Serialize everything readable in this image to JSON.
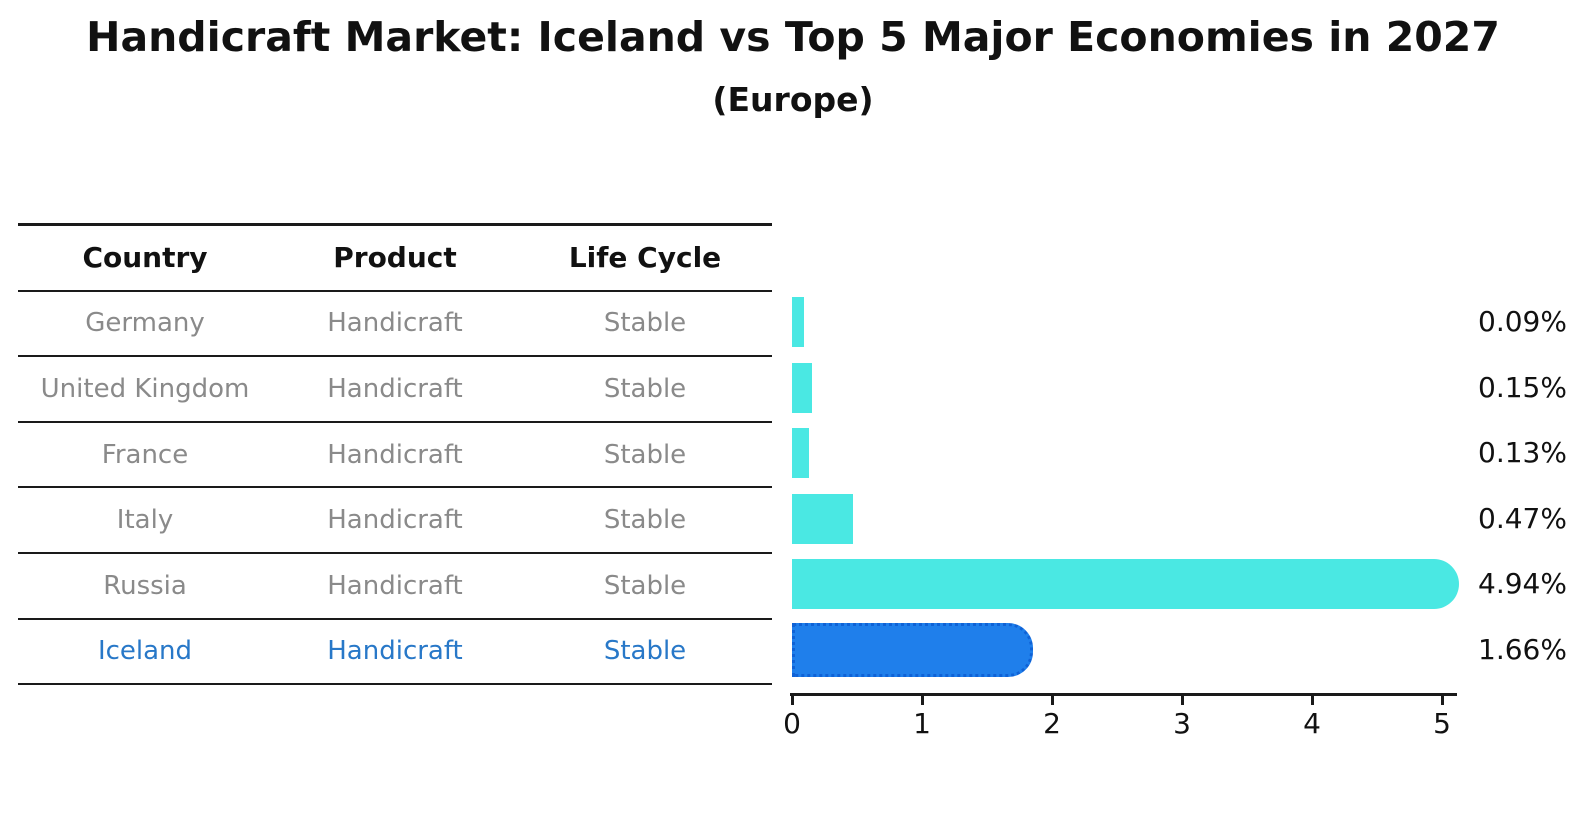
{
  "title": "Handicraft Market: Iceland vs Top 5 Major Economies in 2027",
  "subtitle": "(Europe)",
  "table": {
    "headers": [
      "Country",
      "Product",
      "Life Cycle"
    ],
    "rows": [
      {
        "country": "Germany",
        "product": "Handicraft",
        "life_cycle": "Stable",
        "highlight": false
      },
      {
        "country": "United Kingdom",
        "product": "Handicraft",
        "life_cycle": "Stable",
        "highlight": false
      },
      {
        "country": "France",
        "product": "Handicraft",
        "life_cycle": "Stable",
        "highlight": false
      },
      {
        "country": "Italy",
        "product": "Handicraft",
        "life_cycle": "Stable",
        "highlight": false
      },
      {
        "country": "Russia",
        "product": "Handicraft",
        "life_cycle": "Stable",
        "highlight": false
      },
      {
        "country": "Iceland",
        "product": "Handicraft",
        "life_cycle": "Stable",
        "highlight": true
      }
    ]
  },
  "colors": {
    "bar_default": "#4AE8E3",
    "bar_highlight": "#1F7FEB",
    "bar_highlight_border": "#0F62D6",
    "highlight_text": "#2878C8",
    "table_text": "#8A8A8A",
    "axis": "#1A1A1A"
  },
  "chart_data": {
    "type": "bar",
    "orientation": "horizontal",
    "categories": [
      "Germany",
      "United Kingdom",
      "France",
      "Italy",
      "Russia",
      "Iceland"
    ],
    "values": [
      0.09,
      0.15,
      0.13,
      0.47,
      4.94,
      1.66
    ],
    "value_labels": [
      "0.09%",
      "0.15%",
      "0.13%",
      "0.47%",
      "4.94%",
      "1.66%"
    ],
    "bar_colors": [
      "#4AE8E3",
      "#4AE8E3",
      "#4AE8E3",
      "#4AE8E3",
      "#4AE8E3",
      "#1F7FEB"
    ],
    "highlight_index": 5,
    "xlabel": "",
    "ylabel": "",
    "xlim": [
      0,
      5.1
    ],
    "x_ticks": [
      "0",
      "1",
      "2",
      "3",
      "4",
      "5"
    ],
    "grid": false,
    "legend": false
  }
}
